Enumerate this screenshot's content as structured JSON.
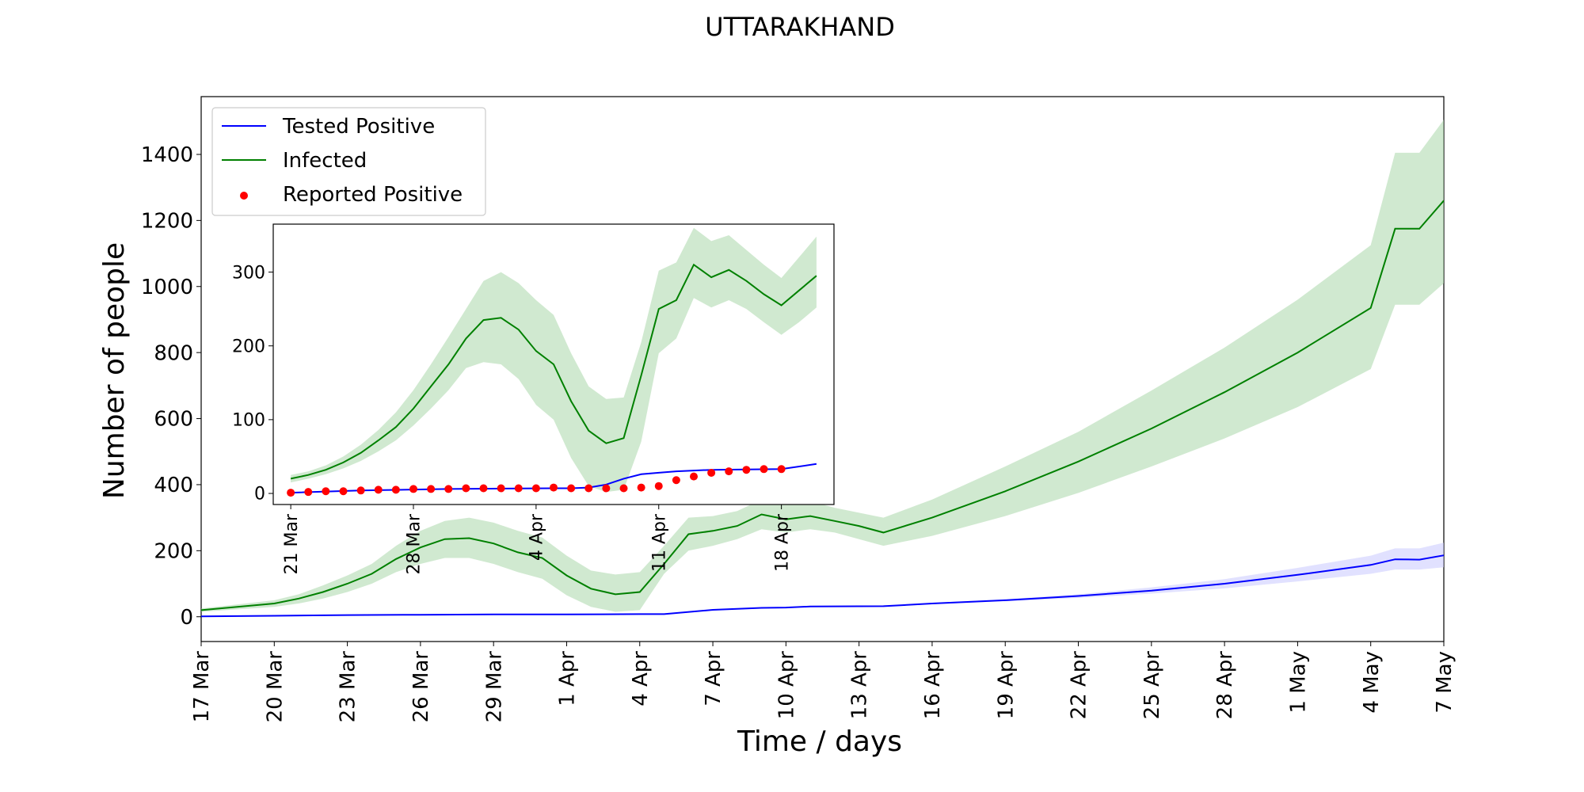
{
  "chart_data": [
    {
      "type": "line",
      "title": "UTTARAKHAND",
      "xlabel": "Time / days",
      "ylabel": "Number of people",
      "xlim": [
        "2020-03-17",
        "2020-05-07"
      ],
      "ylim": [
        -75,
        1575
      ],
      "yticks": [
        0,
        200,
        400,
        600,
        800,
        1000,
        1200,
        1400
      ],
      "xticks": [
        "17 Mar",
        "20 Mar",
        "23 Mar",
        "26 Mar",
        "29 Mar",
        "1 Apr",
        "4 Apr",
        "7 Apr",
        "10 Apr",
        "13 Apr",
        "16 Apr",
        "19 Apr",
        "22 Apr",
        "25 Apr",
        "28 Apr",
        "1 May",
        "4 May",
        "7 May"
      ],
      "xtick_dates": [
        "2020-03-17",
        "2020-03-20",
        "2020-03-23",
        "2020-03-26",
        "2020-03-29",
        "2020-04-01",
        "2020-04-04",
        "2020-04-07",
        "2020-04-10",
        "2020-04-13",
        "2020-04-16",
        "2020-04-19",
        "2020-04-22",
        "2020-04-25",
        "2020-04-28",
        "2020-05-01",
        "2020-05-04",
        "2020-05-07"
      ],
      "legend": {
        "placement": "top-left",
        "entries": [
          {
            "label": "Tested Positive",
            "color": "#0000ff",
            "marker": "line"
          },
          {
            "label": "Infected",
            "color": "#008000",
            "marker": "line"
          },
          {
            "label": "Reported Positive",
            "color": "#ff0000",
            "marker": "dot"
          }
        ]
      },
      "series": [
        {
          "name": "Infected",
          "color": "#008000",
          "band_color": "#a9d7a9",
          "x": [
            "2020-03-17",
            "2020-03-20",
            "2020-03-21",
            "2020-03-22",
            "2020-03-23",
            "2020-03-24",
            "2020-03-25",
            "2020-03-26",
            "2020-03-27",
            "2020-03-28",
            "2020-03-29",
            "2020-03-30",
            "2020-03-31",
            "2020-04-01",
            "2020-04-02",
            "2020-04-03",
            "2020-04-04",
            "2020-04-05",
            "2020-04-06",
            "2020-04-07",
            "2020-04-08",
            "2020-04-09",
            "2020-04-10",
            "2020-04-11",
            "2020-04-12",
            "2020-04-13",
            "2020-04-14",
            "2020-04-16",
            "2020-04-19",
            "2020-04-22",
            "2020-04-25",
            "2020-04-28",
            "2020-05-01",
            "2020-05-04",
            "2020-05-05",
            "2020-05-06",
            "2020-05-07"
          ],
          "values": [
            20,
            40,
            55,
            75,
            100,
            130,
            175,
            210,
            235,
            238,
            222,
            195,
            178,
            125,
            85,
            68,
            75,
            160,
            250,
            260,
            275,
            310,
            295,
            305,
            290,
            275,
            255,
            300,
            380,
            470,
            570,
            680,
            800,
            935,
            1175,
            1175,
            1260
          ],
          "lower": [
            15,
            30,
            40,
            55,
            75,
            100,
            135,
            160,
            178,
            178,
            160,
            135,
            115,
            65,
            30,
            15,
            20,
            130,
            200,
            215,
            235,
            265,
            255,
            265,
            255,
            235,
            215,
            245,
            305,
            375,
            455,
            540,
            635,
            750,
            945,
            945,
            1010
          ],
          "upper": [
            25,
            50,
            68,
            95,
            125,
            160,
            215,
            260,
            290,
            300,
            285,
            260,
            240,
            185,
            140,
            128,
            135,
            215,
            300,
            305,
            320,
            355,
            340,
            350,
            330,
            315,
            300,
            355,
            455,
            560,
            685,
            815,
            960,
            1125,
            1405,
            1405,
            1505
          ]
        },
        {
          "name": "Tested Positive",
          "color": "#0000ff",
          "band_color": "#c8c8ff",
          "x": [
            "2020-03-17",
            "2020-03-20",
            "2020-03-23",
            "2020-03-26",
            "2020-03-29",
            "2020-04-01",
            "2020-04-04",
            "2020-04-05",
            "2020-04-07",
            "2020-04-09",
            "2020-04-10",
            "2020-04-11",
            "2020-04-14",
            "2020-04-16",
            "2020-04-19",
            "2020-04-22",
            "2020-04-25",
            "2020-04-28",
            "2020-05-01",
            "2020-05-04",
            "2020-05-05",
            "2020-05-06",
            "2020-05-07"
          ],
          "values": [
            1,
            3,
            5,
            6,
            7,
            7,
            8,
            8,
            21,
            27,
            28,
            31,
            32,
            40,
            50,
            63,
            79,
            100,
            127,
            157,
            174,
            173,
            186
          ],
          "lower": [
            1,
            3,
            5,
            6,
            7,
            7,
            8,
            8,
            20,
            26,
            27,
            30,
            31,
            38,
            47,
            57,
            70,
            86,
            107,
            130,
            143,
            143,
            150
          ],
          "upper": [
            1,
            3,
            5,
            6,
            7,
            7,
            8,
            8,
            22,
            28,
            29,
            32,
            33,
            42,
            53,
            68,
            89,
            114,
            148,
            185,
            207,
            207,
            224
          ]
        }
      ]
    },
    {
      "type": "line",
      "title": "",
      "xlim": [
        "2020-03-20",
        "2020-04-21"
      ],
      "ylim": [
        -15,
        365
      ],
      "yticks": [
        0,
        100,
        200,
        300
      ],
      "xticks": [
        "21 Mar",
        "28 Mar",
        "4 Apr",
        "11 Apr",
        "18 Apr"
      ],
      "xtick_dates": [
        "2020-03-21",
        "2020-03-28",
        "2020-04-04",
        "2020-04-11",
        "2020-04-18"
      ],
      "series": [
        {
          "name": "Infected",
          "color": "#008000",
          "band_color": "#a9d7a9",
          "x": [
            "2020-03-21",
            "2020-03-22",
            "2020-03-23",
            "2020-03-24",
            "2020-03-25",
            "2020-03-26",
            "2020-03-27",
            "2020-03-28",
            "2020-03-29",
            "2020-03-30",
            "2020-03-31",
            "2020-04-01",
            "2020-04-02",
            "2020-04-03",
            "2020-04-04",
            "2020-04-05",
            "2020-04-06",
            "2020-04-07",
            "2020-04-08",
            "2020-04-09",
            "2020-04-10",
            "2020-04-11",
            "2020-04-12",
            "2020-04-13",
            "2020-04-14",
            "2020-04-15",
            "2020-04-16",
            "2020-04-17",
            "2020-04-18",
            "2020-04-19",
            "2020-04-20"
          ],
          "values": [
            20,
            25,
            32,
            42,
            55,
            72,
            90,
            115,
            145,
            175,
            210,
            235,
            238,
            222,
            193,
            175,
            125,
            85,
            68,
            75,
            160,
            250,
            262,
            310,
            293,
            303,
            288,
            270,
            255,
            275,
            295
          ],
          "lower": [
            15,
            20,
            26,
            34,
            44,
            57,
            72,
            92,
            115,
            140,
            170,
            178,
            175,
            155,
            120,
            100,
            48,
            10,
            2,
            5,
            70,
            190,
            210,
            265,
            252,
            262,
            250,
            232,
            215,
            232,
            252
          ],
          "upper": [
            25,
            30,
            38,
            50,
            66,
            86,
            110,
            140,
            175,
            212,
            250,
            288,
            300,
            285,
            262,
            242,
            190,
            145,
            128,
            130,
            205,
            302,
            313,
            360,
            342,
            350,
            330,
            310,
            292,
            320,
            348
          ]
        },
        {
          "name": "Tested Positive",
          "color": "#0000ff",
          "x": [
            "2020-03-21",
            "2020-03-25",
            "2020-03-30",
            "2020-04-05",
            "2020-04-06",
            "2020-04-07",
            "2020-04-08",
            "2020-04-09",
            "2020-04-10",
            "2020-04-11",
            "2020-04-12",
            "2020-04-14",
            "2020-04-18",
            "2020-04-20"
          ],
          "values": [
            1,
            4,
            6,
            7,
            7,
            8,
            12,
            20,
            26,
            28,
            30,
            32,
            33,
            40
          ]
        },
        {
          "name": "Reported Positive",
          "type": "scatter",
          "color": "#ff0000",
          "x": [
            "2020-03-21",
            "2020-03-22",
            "2020-03-23",
            "2020-03-24",
            "2020-03-25",
            "2020-03-26",
            "2020-03-27",
            "2020-03-28",
            "2020-03-29",
            "2020-03-30",
            "2020-03-31",
            "2020-04-01",
            "2020-04-02",
            "2020-04-03",
            "2020-04-04",
            "2020-04-05",
            "2020-04-06",
            "2020-04-07",
            "2020-04-08",
            "2020-04-09",
            "2020-04-10",
            "2020-04-11",
            "2020-04-12",
            "2020-04-13",
            "2020-04-14",
            "2020-04-15",
            "2020-04-16",
            "2020-04-17",
            "2020-04-18"
          ],
          "values": [
            1,
            2,
            3,
            3,
            4,
            5,
            5,
            6,
            6,
            6,
            7,
            7,
            7,
            7,
            7,
            8,
            7,
            7,
            7,
            7,
            8,
            10,
            18,
            23,
            28,
            30,
            32,
            33,
            33
          ]
        }
      ]
    }
  ]
}
